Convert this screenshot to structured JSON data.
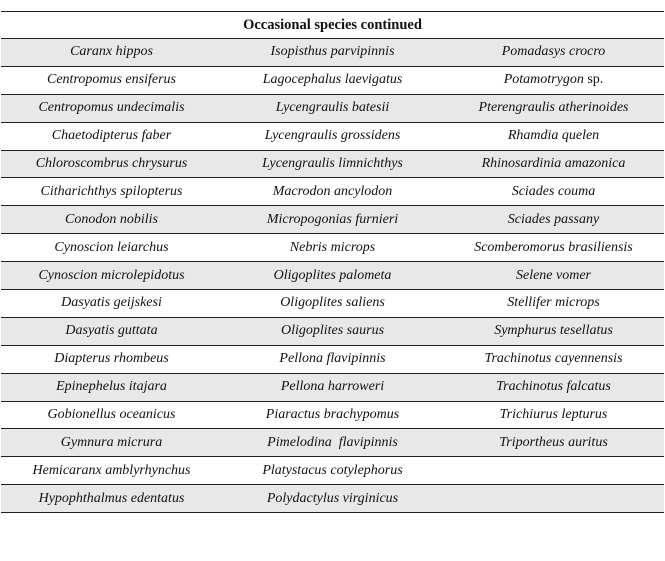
{
  "table": {
    "title": "Occasional species continued",
    "columns": 3,
    "rows": [
      [
        "Caranx hippos",
        "Isopisthus parvipinnis",
        "Pomadasys crocro"
      ],
      [
        "Centropomus ensiferus",
        "Lagocephalus laevigatus",
        {
          "i": "Potamotrygon",
          "r": " sp."
        }
      ],
      [
        "Centropomus undecimalis",
        "Lycengraulis batesii",
        "Pterengraulis atherinoides"
      ],
      [
        "Chaetodipterus faber",
        "Lycengraulis grossidens",
        "Rhamdia quelen"
      ],
      [
        "Chloroscombrus chrysurus",
        "Lycengraulis limnichthys",
        "Rhinosardinia amazonica"
      ],
      [
        "Citharichthys spilopterus",
        "Macrodon ancylodon",
        "Sciades couma"
      ],
      [
        "Conodon nobilis",
        "Micropogonias furnieri",
        "Sciades passany"
      ],
      [
        "Cynoscion leiarchus",
        "Nebris microps",
        "Scomberomorus brasiliensis"
      ],
      [
        "Cynoscion microlepidotus",
        "Oligoplites palometa",
        "Selene vomer"
      ],
      [
        "Dasyatis geijskesi",
        "Oligoplites saliens",
        "Stellifer microps"
      ],
      [
        "Dasyatis guttata",
        "Oligoplites saurus",
        "Symphurus tesellatus"
      ],
      [
        "Diapterus rhombeus",
        "Pellona flavipinnis",
        "Trachinotus cayennensis"
      ],
      [
        "Epinephelus itajara",
        "Pellona harroweri",
        "Trachinotus falcatus"
      ],
      [
        "Gobionellus oceanicus",
        "Piaractus brachypomus",
        "Trichiurus lepturus"
      ],
      [
        "Gymnura micrura",
        "Pimelodina  flavipinnis",
        "Triportheus auritus"
      ],
      [
        "Hemicaranx amblyrhynchus",
        "Platystacus cotylephorus",
        ""
      ],
      [
        "Hypophthalmus edentatus",
        "Polydactylus virginicus",
        ""
      ]
    ]
  },
  "colors": {
    "alt_row": "#e8e8e8",
    "border": "#1f1f1f",
    "page_bg": "#ffffff"
  }
}
